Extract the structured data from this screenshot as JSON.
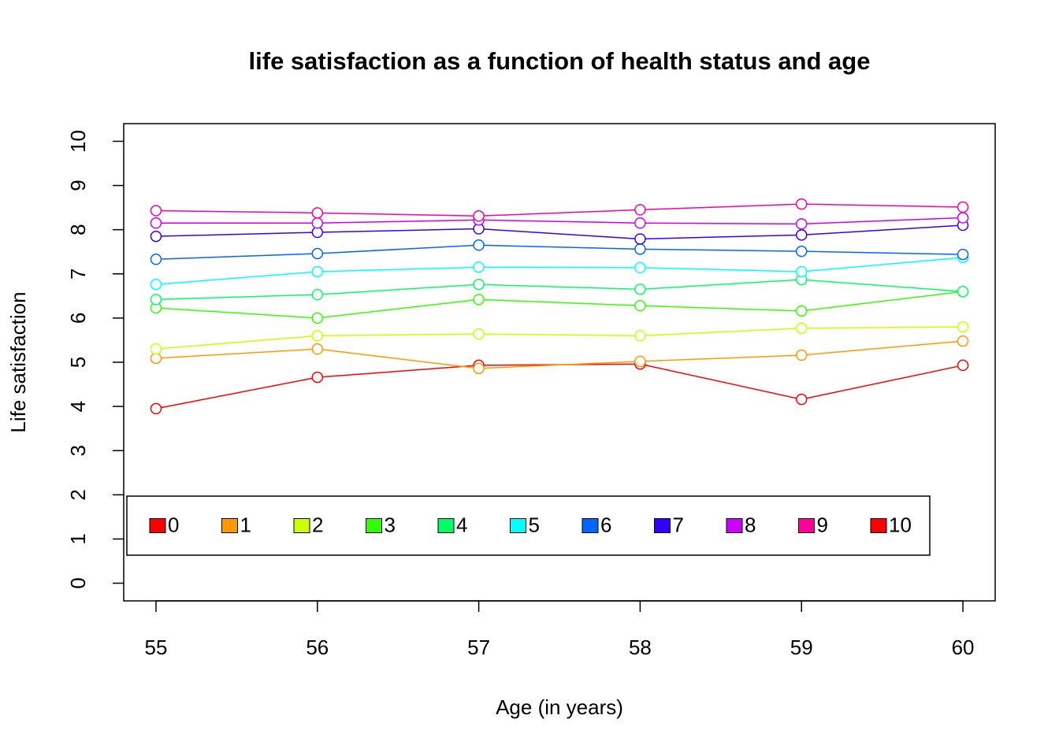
{
  "chart_data": {
    "type": "line",
    "title": "life satisfaction as a function of health status and age",
    "x_label": "Age (in years)",
    "y_label": "Life satisfaction",
    "x": [
      55,
      56,
      57,
      58,
      59,
      60
    ],
    "xlim": [
      54.8,
      60.2
    ],
    "xticks": [
      55,
      56,
      57,
      58,
      59,
      60
    ],
    "ylim": [
      -0.4,
      10.4
    ],
    "yticks": [
      0,
      1,
      2,
      3,
      4,
      5,
      6,
      7,
      8,
      9,
      10
    ],
    "legend_position": "bottomleft",
    "series": [
      {
        "name": "0",
        "color": "#FF0000",
        "values": [
          3.95,
          4.66,
          4.93,
          4.96,
          4.16,
          4.93
        ]
      },
      {
        "name": "1",
        "color": "#FF9900",
        "values": [
          5.09,
          5.3,
          4.86,
          5.02,
          5.16,
          5.48
        ]
      },
      {
        "name": "2",
        "color": "#CCFF00",
        "values": [
          5.3,
          5.6,
          5.64,
          5.6,
          5.77,
          5.8
        ]
      },
      {
        "name": "3",
        "color": "#33FF00",
        "values": [
          6.23,
          6.0,
          6.42,
          6.28,
          6.16,
          6.6
        ]
      },
      {
        "name": "4",
        "color": "#00FF66",
        "values": [
          6.42,
          6.53,
          6.76,
          6.65,
          6.87,
          6.6
        ]
      },
      {
        "name": "5",
        "color": "#00FFFF",
        "values": [
          6.76,
          7.05,
          7.15,
          7.14,
          7.05,
          7.37
        ]
      },
      {
        "name": "6",
        "color": "#0066FF",
        "values": [
          7.33,
          7.46,
          7.65,
          7.56,
          7.51,
          7.44
        ]
      },
      {
        "name": "7",
        "color": "#3300FF",
        "values": [
          7.85,
          7.94,
          8.02,
          7.79,
          7.88,
          8.1
        ]
      },
      {
        "name": "8",
        "color": "#CC00FF",
        "values": [
          8.15,
          8.15,
          8.22,
          8.15,
          8.13,
          8.27
        ]
      },
      {
        "name": "9",
        "color": "#FF0099",
        "values": [
          8.43,
          8.38,
          8.31,
          8.45,
          8.58,
          8.51
        ]
      },
      {
        "name": "10",
        "color": "#FF0000",
        "values": [
          null,
          null,
          null,
          null,
          null,
          null
        ]
      }
    ]
  }
}
